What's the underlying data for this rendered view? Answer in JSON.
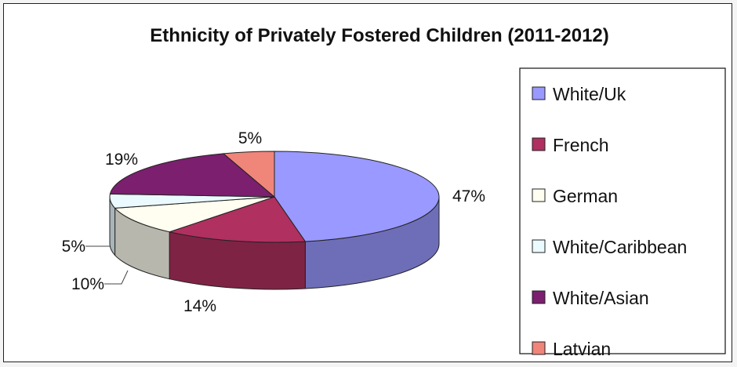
{
  "chart_data": {
    "type": "pie",
    "title": "Ethnicity of Privately Fostered Children (2011-2012)",
    "categories": [
      "White/Uk",
      "French",
      "German",
      "White/Caribbean",
      "White/Asian",
      "Latvian"
    ],
    "values": [
      47,
      14,
      10,
      5,
      19,
      5
    ],
    "labels": [
      "47%",
      "14%",
      "10%",
      "5%",
      "19%",
      "5%"
    ],
    "colors": [
      "#9999ff",
      "#b03060",
      "#fffef0",
      "#eafaff",
      "#7b1f6e",
      "#f0857a"
    ],
    "legend": {
      "placement": "right",
      "entries": [
        "White/Uk",
        "French",
        "German",
        "White/Caribbean",
        "White/Asian",
        "Latvian"
      ],
      "colors": [
        "#9999ff",
        "#b03060",
        "#fffef0",
        "#eafaff",
        "#7b1f6e",
        "#f0857a"
      ]
    },
    "style": "3d-pie"
  }
}
